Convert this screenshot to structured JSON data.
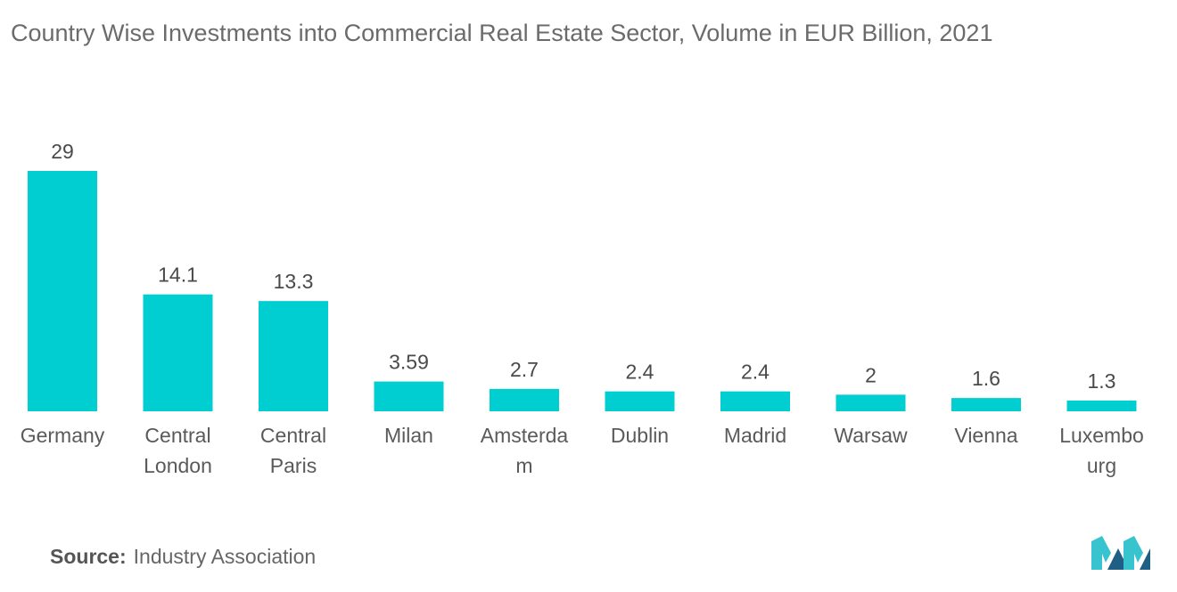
{
  "title": "Country Wise Investments into Commercial Real Estate Sector, Volume in EUR Billion, 2021",
  "source_label": "Source:",
  "source_text": "Industry Association",
  "logo_icon": "mordor-intelligence-logo-icon",
  "colors": {
    "bar": "#00CED1",
    "logo_dark": "#1f5f86",
    "logo_light": "#38c4cf"
  },
  "chart_data": {
    "type": "bar",
    "title": "Country Wise Investments into Commercial Real Estate Sector, Volume in EUR Billion, 2021",
    "xlabel": "",
    "ylabel": "",
    "ylim": [
      0,
      29
    ],
    "grid": false,
    "categories": [
      [
        "Germany"
      ],
      [
        "Central",
        "London"
      ],
      [
        "Central",
        "Paris"
      ],
      [
        "Milan"
      ],
      [
        "Amsterda",
        "m"
      ],
      [
        "Dublin"
      ],
      [
        "Madrid"
      ],
      [
        "Warsaw"
      ],
      [
        "Vienna"
      ],
      [
        "Luxembo",
        "urg"
      ]
    ],
    "values": [
      29,
      14.1,
      13.3,
      3.59,
      2.7,
      2.4,
      2.4,
      2,
      1.6,
      1.3
    ],
    "value_labels": [
      "29",
      "14.1",
      "13.3",
      "3.59",
      "2.7",
      "2.4",
      "2.4",
      "2",
      "1.6",
      "1.3"
    ]
  }
}
